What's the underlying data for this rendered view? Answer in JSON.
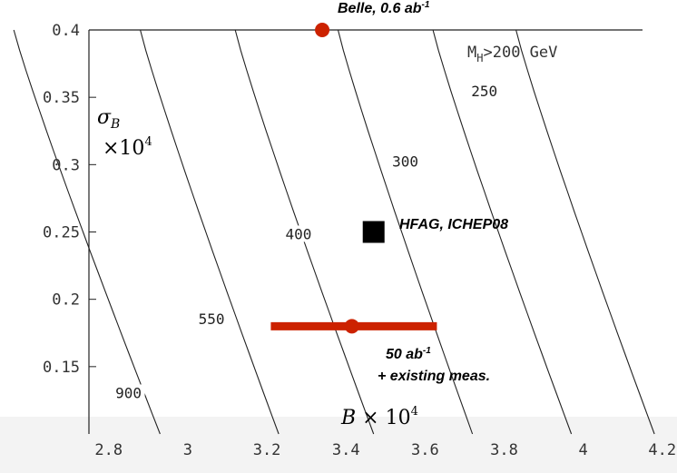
{
  "chart_data": {
    "type": "scatter",
    "xlim": [
      2.75,
      4.15
    ],
    "ylim": [
      0.1,
      0.4
    ],
    "x_ticks": [
      "2.8",
      "3",
      "3.2",
      "3.4",
      "3.6",
      "3.8",
      "4",
      "4.2"
    ],
    "y_ticks": [
      "0.4",
      "0.35",
      "0.3",
      "0.25",
      "0.2",
      "0.15"
    ],
    "y_label_symbol": "σ",
    "y_label_sub": "B",
    "y_label_scale": "×10",
    "y_label_exp": "4",
    "x_label_symbol": "B",
    "x_label_scale": " × 10",
    "x_label_exp": "4",
    "mh_label_main": "M",
    "mh_label_sub": "H",
    "mh_label_rest": ">200 GeV",
    "contours": [
      {
        "label": "900",
        "x_at_top": 2.56,
        "x_at_bottom": 2.93
      },
      {
        "label": "550",
        "x_at_top": 2.88,
        "x_at_bottom": 3.23
      },
      {
        "label": "400",
        "x_at_top": 3.12,
        "x_at_bottom": 3.47
      },
      {
        "label": "300",
        "x_at_top": 3.38,
        "x_at_bottom": 3.72
      },
      {
        "label": "250",
        "x_at_top": 3.62,
        "x_at_bottom": 3.97
      },
      {
        "label": "",
        "x_at_top": 3.83,
        "x_at_bottom": 4.18
      }
    ],
    "contour_label_positions": [
      {
        "label": "900",
        "x": 2.85,
        "y": 0.128
      },
      {
        "label": "550",
        "x": 3.06,
        "y": 0.183
      },
      {
        "label": "400",
        "x": 3.28,
        "y": 0.246
      },
      {
        "label": "300",
        "x": 3.55,
        "y": 0.3
      },
      {
        "label": "250",
        "x": 3.75,
        "y": 0.352
      }
    ],
    "points": [
      {
        "name": "Belle",
        "label_main": "Belle, 0.6 ab",
        "label_exp": "-1",
        "x": 3.34,
        "y": 0.4,
        "color": "#cc2200",
        "marker": "circle"
      },
      {
        "name": "HFAG",
        "label_main": "HFAG, ICHEP08",
        "x": 3.47,
        "y": 0.25,
        "color": "#000000",
        "marker": "square"
      },
      {
        "name": "50ab",
        "label_line1_main": "50 ab",
        "label_line1_exp": "-1",
        "label_line2": "+ existing meas.",
        "x": 3.415,
        "y": 0.18,
        "xerr_low": 3.21,
        "xerr_high": 3.63,
        "color": "#cc2200",
        "marker": "circle"
      }
    ]
  }
}
